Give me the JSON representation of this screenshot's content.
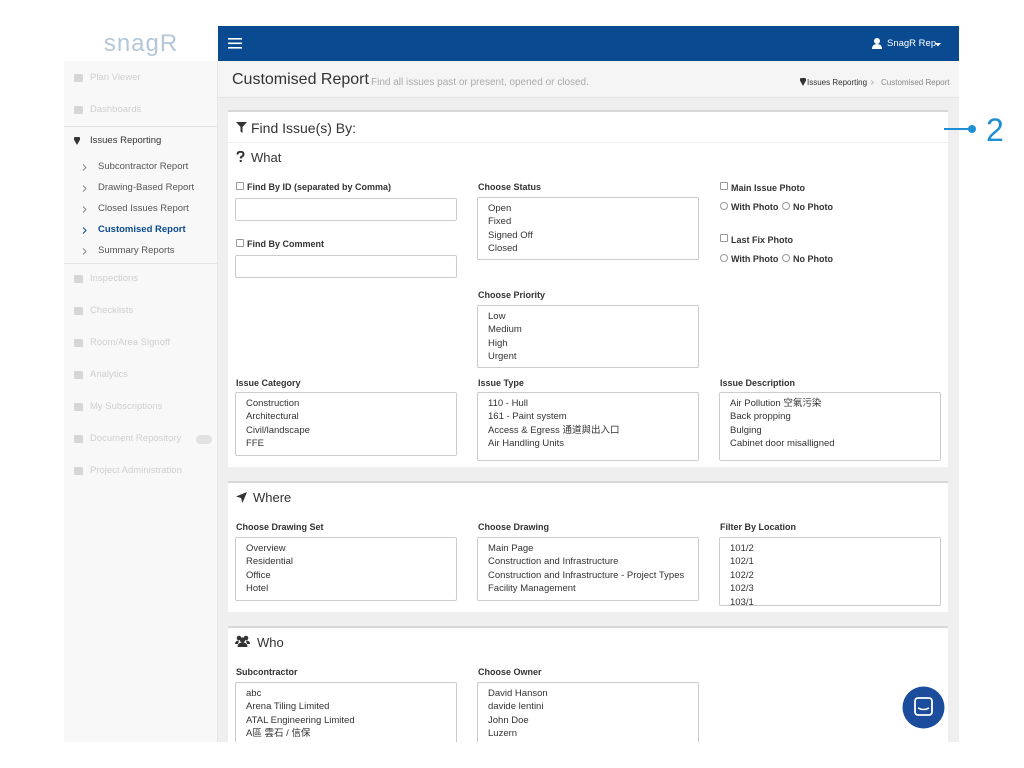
{
  "sidebar": {
    "logo": "snagR",
    "items_top": [
      "Plan Viewer",
      "Dashboards"
    ],
    "active_group": "Issues Reporting",
    "sub_items": [
      "Subcontractor Report",
      "Drawing-Based Report",
      "Closed Issues Report",
      "Customised Report",
      "Summary Reports"
    ],
    "items_bottom": [
      "Inspections",
      "Checklists",
      "Room/Area Signoff",
      "Analytics",
      "My Subscriptions",
      "Document Repository",
      "Project Administration"
    ]
  },
  "topbar": {
    "user": "SnagR Rep"
  },
  "header": {
    "title": "Customised Report",
    "subtitle": "Find all issues past or present, opened or closed.",
    "breadcrumb": [
      "Issues Reporting",
      "Customised Report"
    ]
  },
  "callout": "2",
  "find": {
    "title": "Find Issue(s) By:",
    "what": {
      "title": "What",
      "find_by_id": "Find By ID (separated by Comma)",
      "find_by_comment": "Find By Comment",
      "status": {
        "label": "Choose Status",
        "options": [
          "Open",
          "Fixed",
          "Signed Off",
          "Closed"
        ]
      },
      "priority": {
        "label": "Choose Priority",
        "options": [
          "Low",
          "Medium",
          "High",
          "Urgent"
        ]
      },
      "main_issue_photo": {
        "label": "Main Issue Photo",
        "with": "With Photo",
        "without": "No Photo"
      },
      "last_fix_photo": {
        "label": "Last Fix Photo",
        "with": "With Photo",
        "without": "No Photo"
      },
      "category": {
        "label": "Issue Category",
        "options": [
          "Construction",
          "Architectural",
          "Civil/landscape",
          "FFE"
        ]
      },
      "type": {
        "label": "Issue Type",
        "options": [
          "110 - Hull",
          "161 - Paint system",
          "Access & Egress 通道與出入口",
          "Air Handling Units"
        ]
      },
      "description": {
        "label": "Issue Description",
        "options": [
          "Air Pollution 空氣污染",
          "Back propping",
          "Bulging",
          "Cabinet door misalligned"
        ]
      }
    },
    "where": {
      "title": "Where",
      "drawing_set": {
        "label": "Choose Drawing Set",
        "options": [
          "Overview",
          "Residential",
          "Office",
          "Hotel"
        ]
      },
      "drawing": {
        "label": "Choose Drawing",
        "options": [
          "Main Page",
          "Construction and Infrastructure",
          "Construction and Infrastructure - Project Types",
          "Facility Management"
        ]
      },
      "location": {
        "label": "Filter By Location",
        "options": [
          "101/2",
          "102/1",
          "102/2",
          "102/3",
          "103/1"
        ]
      }
    },
    "who": {
      "title": "Who",
      "subcontractor": {
        "label": "Subcontractor",
        "options": [
          "abc",
          "Arena Tiling Limited",
          "ATAL Engineering Limited",
          "A區 雲石 / 信保"
        ]
      },
      "owner": {
        "label": "Choose Owner",
        "options": [
          "David Hanson",
          "davide lentini",
          "John Doe",
          "Luzern"
        ]
      }
    }
  }
}
